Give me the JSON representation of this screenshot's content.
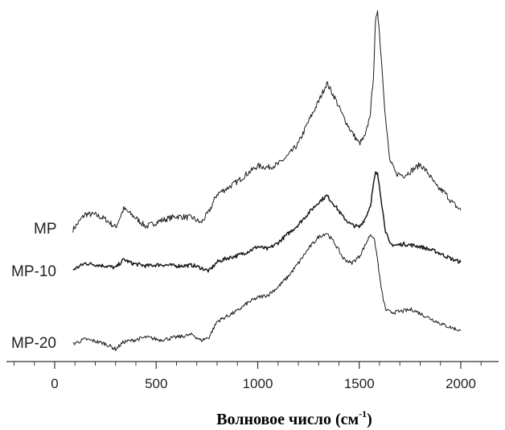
{
  "chart_data": {
    "type": "line",
    "xlabel": "Волновое число (см",
    "xlabel_sup": "-1",
    "xlabel_end": ")",
    "ylabel": "",
    "xlim": [
      -230,
      2100
    ],
    "xticks": [
      0,
      500,
      1000,
      1500,
      2000
    ],
    "xtick_labels": [
      "0",
      "500",
      "1000",
      "1500",
      "2000"
    ],
    "minor_tick_step": 100,
    "grid": false,
    "y_axis_shown": false,
    "line_color": "#1a1a1a",
    "series": [
      {
        "name": "MP",
        "x": [
          90,
          150,
          200,
          250,
          300,
          340,
          380,
          450,
          520,
          600,
          680,
          720,
          760,
          800,
          850,
          900,
          950,
          1000,
          1050,
          1100,
          1150,
          1200,
          1250,
          1300,
          1340,
          1380,
          1420,
          1460,
          1500,
          1530,
          1555,
          1570,
          1580,
          1590,
          1600,
          1615,
          1630,
          1650,
          1680,
          1720,
          1760,
          1800,
          1840,
          1880,
          1920,
          1960,
          2000
        ],
        "y": [
          0.02,
          0.23,
          0.22,
          0.16,
          0.05,
          0.3,
          0.22,
          0.06,
          0.14,
          0.2,
          0.18,
          0.11,
          0.26,
          0.5,
          0.58,
          0.67,
          0.78,
          0.88,
          0.86,
          0.9,
          1.02,
          1.18,
          1.48,
          1.75,
          2.0,
          1.8,
          1.55,
          1.35,
          1.18,
          1.28,
          1.6,
          2.1,
          2.8,
          3.0,
          2.65,
          2.1,
          1.5,
          0.96,
          0.78,
          0.75,
          0.82,
          0.9,
          0.78,
          0.6,
          0.52,
          0.38,
          0.28
        ]
      },
      {
        "name": "MP-10",
        "x": [
          90,
          150,
          200,
          250,
          300,
          340,
          380,
          450,
          520,
          600,
          680,
          720,
          760,
          800,
          850,
          900,
          950,
          1000,
          1050,
          1100,
          1150,
          1200,
          1250,
          1300,
          1340,
          1380,
          1420,
          1460,
          1500,
          1530,
          1555,
          1570,
          1580,
          1590,
          1600,
          1615,
          1630,
          1650,
          1680,
          1720,
          1760,
          1800,
          1840,
          1880,
          1920,
          1960,
          2000
        ],
        "y": [
          0.0,
          0.1,
          0.08,
          0.06,
          0.03,
          0.16,
          0.1,
          0.06,
          0.08,
          0.06,
          0.07,
          0.03,
          -0.02,
          0.12,
          0.18,
          0.22,
          0.28,
          0.36,
          0.32,
          0.42,
          0.56,
          0.7,
          0.88,
          1.05,
          1.15,
          1.0,
          0.82,
          0.7,
          0.66,
          0.8,
          1.0,
          1.32,
          1.5,
          1.48,
          1.3,
          0.92,
          0.6,
          0.4,
          0.38,
          0.4,
          0.38,
          0.36,
          0.32,
          0.28,
          0.22,
          0.16,
          0.12
        ]
      },
      {
        "name": "MP-20",
        "x": [
          90,
          150,
          200,
          250,
          300,
          340,
          380,
          450,
          520,
          600,
          680,
          720,
          760,
          800,
          850,
          900,
          950,
          1000,
          1050,
          1100,
          1150,
          1200,
          1250,
          1300,
          1340,
          1380,
          1420,
          1460,
          1500,
          1530,
          1555,
          1570,
          1580,
          1590,
          1600,
          1615,
          1630,
          1650,
          1680,
          1720,
          1760,
          1800,
          1840,
          1880,
          1920,
          1960,
          2000
        ],
        "y": [
          0.0,
          0.07,
          0.04,
          0.0,
          -0.08,
          0.03,
          0.05,
          0.1,
          0.06,
          0.1,
          0.14,
          0.05,
          0.1,
          0.34,
          0.42,
          0.5,
          0.62,
          0.7,
          0.74,
          0.86,
          1.02,
          1.22,
          1.44,
          1.62,
          1.68,
          1.52,
          1.3,
          1.22,
          1.32,
          1.5,
          1.66,
          1.62,
          1.48,
          1.28,
          1.02,
          0.72,
          0.52,
          0.48,
          0.48,
          0.5,
          0.52,
          0.46,
          0.4,
          0.34,
          0.28,
          0.24,
          0.2
        ]
      }
    ]
  }
}
